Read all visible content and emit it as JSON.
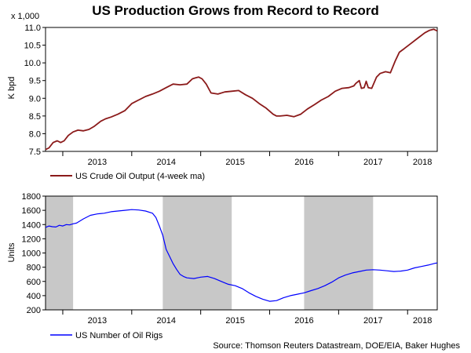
{
  "title": "US Production Grows from Record to Record",
  "source": "Source: Thomson Reuters Datastream, DOE/EIA, Baker Hughes",
  "colors": {
    "crude": "#8b1a1a",
    "rigs": "#0000ff",
    "shade": "#c8c8c8",
    "axis": "#000000"
  },
  "chart_data": [
    {
      "type": "line",
      "title": "US Production Grows from Record to Record",
      "ylabel": "K bpd",
      "scale_label": "x 1,000",
      "xlim": [
        2012.75,
        2018.43
      ],
      "ylim": [
        7.5,
        11.0
      ],
      "yticks": [
        7.5,
        8.0,
        8.5,
        9.0,
        9.5,
        10.0,
        10.5,
        11.0
      ],
      "ytick_labels": [
        "7.5",
        "8.0",
        "8.5",
        "9.0",
        "9.5",
        "10.0",
        "10.5",
        "11.0"
      ],
      "years": [
        "2013",
        "2014",
        "2015",
        "2016",
        "2017",
        "2018"
      ],
      "legend": "US Crude Oil Output (4-week ma)",
      "legend_position": "bottom-left",
      "series": [
        {
          "name": "US Crude Oil Output (4-week ma)",
          "x": [
            2012.75,
            2012.8,
            2012.86,
            2012.92,
            2012.97,
            2013.02,
            2013.08,
            2013.15,
            2013.22,
            2013.3,
            2013.38,
            2013.45,
            2013.55,
            2013.62,
            2013.7,
            2013.8,
            2013.9,
            2014.0,
            2014.1,
            2014.2,
            2014.3,
            2014.4,
            2014.5,
            2014.6,
            2014.7,
            2014.8,
            2014.88,
            2014.93,
            2014.97,
            2015.02,
            2015.08,
            2015.15,
            2015.25,
            2015.35,
            2015.45,
            2015.55,
            2015.65,
            2015.75,
            2015.85,
            2015.95,
            2016.05,
            2016.1,
            2016.15,
            2016.25,
            2016.35,
            2016.45,
            2016.55,
            2016.65,
            2016.75,
            2016.85,
            2016.95,
            2017.05,
            2017.15,
            2017.22,
            2017.25,
            2017.3,
            2017.33,
            2017.37,
            2017.4,
            2017.43,
            2017.48,
            2017.55,
            2017.6,
            2017.68,
            2017.75,
            2017.82,
            2017.88,
            2017.95,
            2018.05,
            2018.15,
            2018.25,
            2018.32,
            2018.38,
            2018.43
          ],
          "values": [
            7.55,
            7.6,
            7.75,
            7.8,
            7.75,
            7.8,
            7.95,
            8.05,
            8.1,
            8.08,
            8.12,
            8.2,
            8.35,
            8.42,
            8.47,
            8.55,
            8.65,
            8.85,
            8.95,
            9.05,
            9.12,
            9.2,
            9.3,
            9.4,
            9.38,
            9.4,
            9.55,
            9.58,
            9.6,
            9.55,
            9.4,
            9.15,
            9.12,
            9.18,
            9.2,
            9.22,
            9.1,
            9.0,
            8.85,
            8.72,
            8.55,
            8.5,
            8.5,
            8.52,
            8.48,
            8.55,
            8.7,
            8.82,
            8.95,
            9.05,
            9.2,
            9.28,
            9.3,
            9.35,
            9.42,
            9.5,
            9.28,
            9.3,
            9.48,
            9.3,
            9.28,
            9.6,
            9.7,
            9.75,
            9.72,
            10.05,
            10.3,
            10.4,
            10.55,
            10.7,
            10.85,
            10.92,
            10.95,
            10.9
          ]
        }
      ]
    },
    {
      "type": "line",
      "ylabel": "Units",
      "xlim": [
        2012.75,
        2018.43
      ],
      "ylim": [
        200,
        1800
      ],
      "yticks": [
        200,
        400,
        600,
        800,
        1000,
        1200,
        1400,
        1600,
        1800
      ],
      "ytick_labels": [
        "200",
        "400",
        "600",
        "800",
        "1000",
        "1200",
        "1400",
        "1600",
        "1800"
      ],
      "years": [
        "2013",
        "2014",
        "2015",
        "2016",
        "2017",
        "2018"
      ],
      "shaded_periods": [
        [
          2012.75,
          2013.15
        ],
        [
          2014.45,
          2015.45
        ],
        [
          2016.5,
          2017.5
        ]
      ],
      "legend": "US Number of Oil Rigs",
      "legend_position": "bottom-left",
      "series": [
        {
          "name": "US Number of Oil Rigs",
          "x": [
            2012.75,
            2012.8,
            2012.85,
            2012.9,
            2012.95,
            2013.0,
            2013.05,
            2013.1,
            2013.15,
            2013.2,
            2013.3,
            2013.4,
            2013.5,
            2013.6,
            2013.7,
            2013.8,
            2013.9,
            2014.0,
            2014.1,
            2014.2,
            2014.3,
            2014.35,
            2014.4,
            2014.45,
            2014.5,
            2014.55,
            2014.6,
            2014.65,
            2014.7,
            2014.75,
            2014.8,
            2014.9,
            2015.0,
            2015.1,
            2015.2,
            2015.3,
            2015.4,
            2015.5,
            2015.6,
            2015.7,
            2015.8,
            2015.9,
            2016.0,
            2016.1,
            2016.2,
            2016.3,
            2016.4,
            2016.5,
            2016.6,
            2016.7,
            2016.8,
            2016.9,
            2017.0,
            2017.1,
            2017.2,
            2017.3,
            2017.4,
            2017.5,
            2017.6,
            2017.7,
            2017.8,
            2017.9,
            2018.0,
            2018.1,
            2018.2,
            2018.3,
            2018.4,
            2018.43
          ],
          "values": [
            1360,
            1380,
            1370,
            1365,
            1390,
            1380,
            1400,
            1395,
            1410,
            1420,
            1480,
            1530,
            1550,
            1560,
            1580,
            1590,
            1600,
            1610,
            1605,
            1590,
            1560,
            1500,
            1380,
            1250,
            1050,
            950,
            850,
            770,
            700,
            670,
            650,
            640,
            660,
            670,
            640,
            600,
            560,
            540,
            500,
            440,
            390,
            350,
            320,
            330,
            370,
            400,
            420,
            440,
            470,
            500,
            540,
            590,
            650,
            690,
            720,
            740,
            760,
            765,
            760,
            750,
            740,
            745,
            760,
            790,
            810,
            830,
            855,
            860
          ]
        }
      ]
    }
  ]
}
